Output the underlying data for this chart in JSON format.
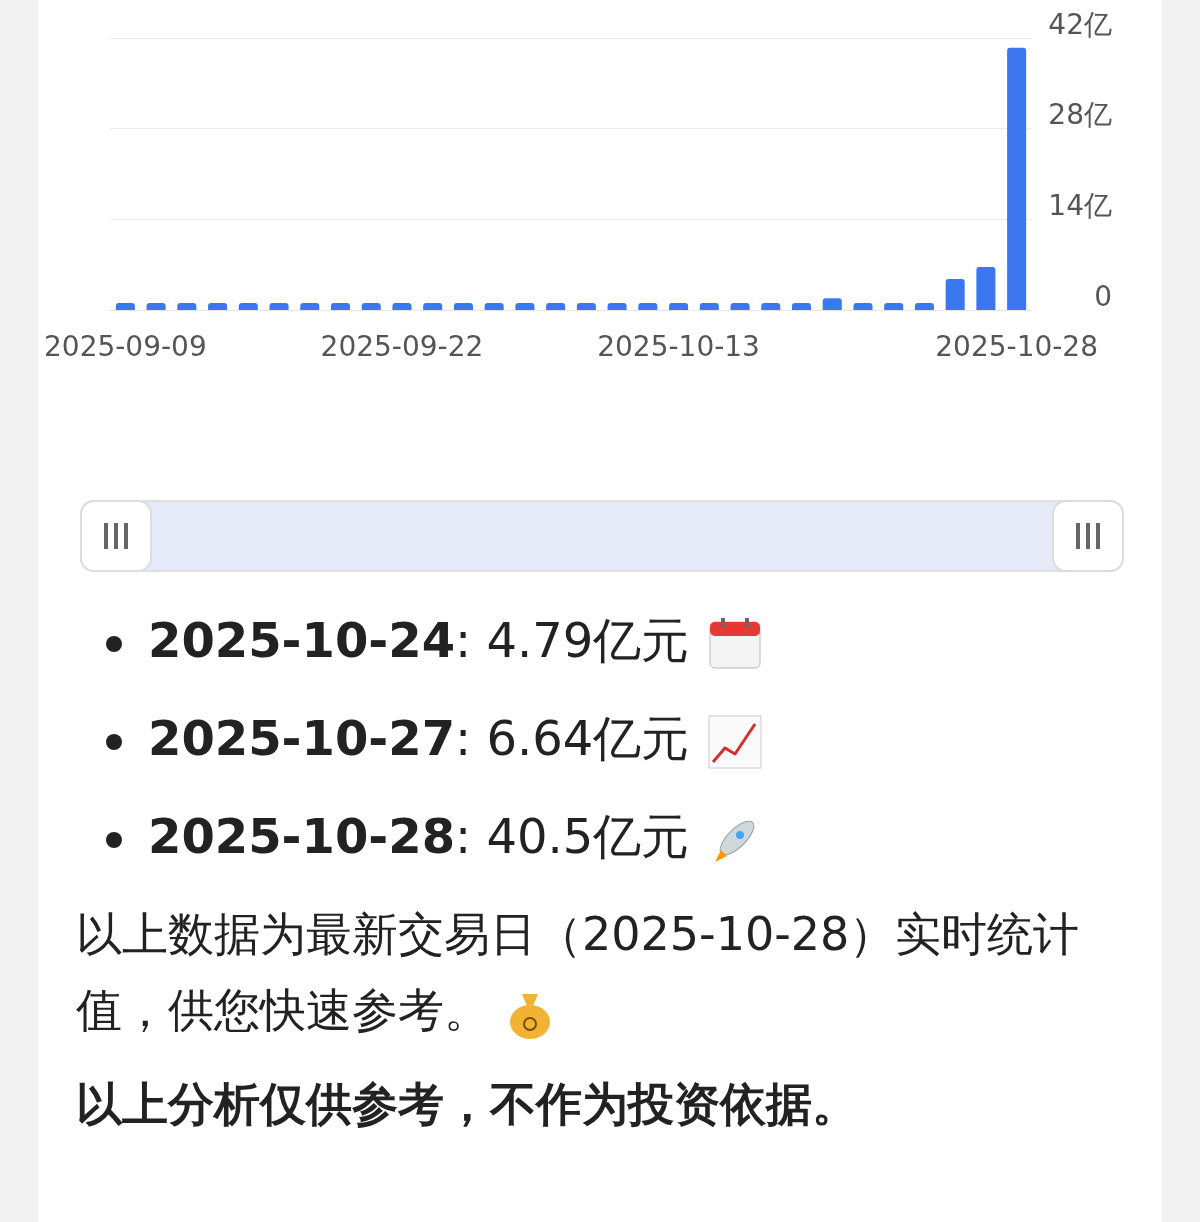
{
  "chart_data": {
    "type": "bar",
    "categories": [
      "2025-09-09",
      null,
      null,
      null,
      null,
      null,
      null,
      null,
      null,
      "2025-09-22",
      null,
      null,
      null,
      null,
      null,
      null,
      null,
      null,
      "2025-10-13",
      null,
      null,
      null,
      null,
      null,
      null,
      null,
      null,
      null,
      null,
      "2025-10-28"
    ],
    "values": [
      1.1,
      1.1,
      1.1,
      1.1,
      1.1,
      1.1,
      1.1,
      1.1,
      1.1,
      1.1,
      1.1,
      1.1,
      1.1,
      1.1,
      1.1,
      1.1,
      1.1,
      1.1,
      1.1,
      1.1,
      1.1,
      1.1,
      1.1,
      1.8,
      1.1,
      1.1,
      1.1,
      4.79,
      6.64,
      40.5
    ],
    "color": "#3b78f0",
    "ylim": [
      0,
      42
    ],
    "yticks": [
      0,
      {
        "value": 14,
        "label": "14亿"
      },
      {
        "value": 28,
        "label": "28亿"
      },
      {
        "value": 42,
        "label": "42亿"
      }
    ],
    "grid": "y",
    "annotations": [
      "2025-10-24: 4.79亿元",
      "2025-10-27: 6.64亿元",
      "2025-10-28: 40.5亿元",
      "以上数据为最新交易日（2025-10-28）实时统计值，供您快速参考。",
      "以上分析仅供参考，不作为投资依据。"
    ]
  }
}
